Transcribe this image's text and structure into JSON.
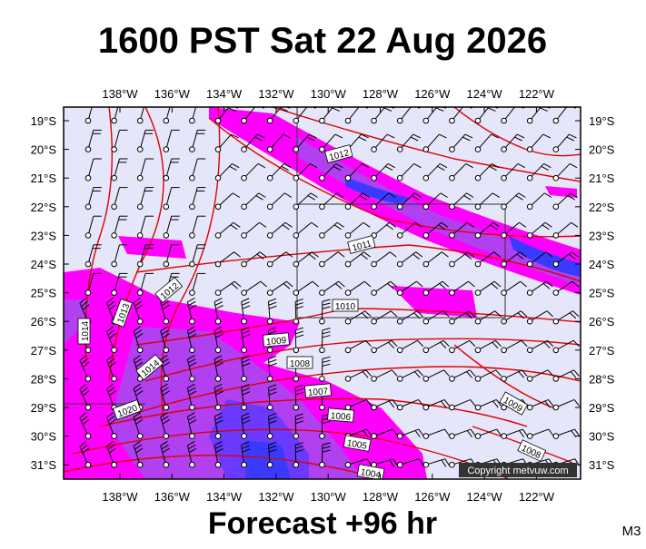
{
  "header": {
    "title": "1600 PST Sat 22 Aug 2026"
  },
  "map": {
    "lon_labels": [
      "138°W",
      "136°W",
      "134°W",
      "132°W",
      "130°W",
      "128°W",
      "126°W",
      "124°W",
      "122°W"
    ],
    "lat_labels": [
      "19°S",
      "20°S",
      "21°S",
      "22°S",
      "23°S",
      "24°S",
      "25°S",
      "26°S",
      "27°S",
      "28°S",
      "29°S",
      "30°S",
      "31°S"
    ],
    "isobar_labels": [
      "1012",
      "1011",
      "1010",
      "1009",
      "1008",
      "1007",
      "1006",
      "1005",
      "1004",
      "1012",
      "1013",
      "1014",
      "1014",
      "1020",
      "1009",
      "1008"
    ],
    "copyright": "Copyright metvuw.com"
  },
  "footer": {
    "forecast": "Forecast +96 hr",
    "model": "M3"
  }
}
